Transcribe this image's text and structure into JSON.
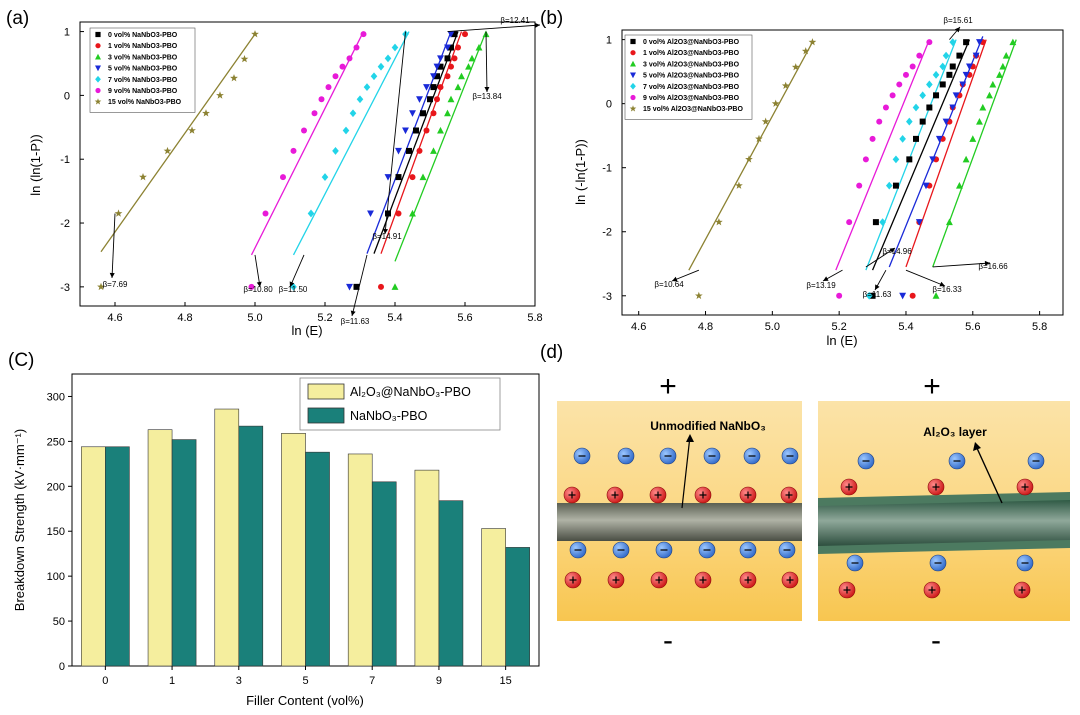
{
  "chart_data": [
    {
      "panel": "(a)",
      "type": "scatter",
      "xlabel": "ln (E)",
      "ylabel": "ln (ln(1-P))",
      "xlim": [
        4.5,
        5.8
      ],
      "ylim": [
        -3.3,
        1.15
      ],
      "xticks": [
        "4.6",
        "4.8",
        "5.0",
        "5.2",
        "5.4",
        "5.6",
        "5.8"
      ],
      "yticks": [
        "1",
        "0",
        "-1",
        "-2",
        "-3"
      ],
      "legend": [
        "0 vol% NaNbO3-PBO",
        "1 vol% NaNbO3-PBO",
        "3 vol% NaNbO3-PBO",
        "5 vol% NaNbO3-PBO",
        "7 vol% NaNbO3-PBO",
        "9 vol% NaNbO3-PBO",
        "15 vol% NaNbO3-PBO"
      ],
      "series": [
        {
          "name": "0 vol% NaNbO3-PBO",
          "color": "#000000",
          "marker": "square",
          "beta": "β=12.41",
          "x": [
            5.29,
            5.38,
            5.41,
            5.44,
            5.46,
            5.48,
            5.5,
            5.51,
            5.52,
            5.53,
            5.55,
            5.56,
            5.57
          ],
          "y": [
            -3.0,
            -1.85,
            -1.28,
            -0.87,
            -0.55,
            -0.28,
            -0.06,
            0.13,
            0.3,
            0.45,
            0.58,
            0.75,
            0.96
          ],
          "fit": [
            [
              5.34,
              -2.48
            ],
            [
              5.58,
              1.0
            ]
          ]
        },
        {
          "name": "1 vol% NaNbO3-PBO",
          "color": "#e8161b",
          "marker": "circle",
          "beta": "β=14.91",
          "x": [
            5.36,
            5.41,
            5.45,
            5.47,
            5.49,
            5.51,
            5.52,
            5.53,
            5.55,
            5.56,
            5.57,
            5.58,
            5.6
          ],
          "y": [
            -3.0,
            -1.85,
            -1.28,
            -0.87,
            -0.55,
            -0.28,
            -0.06,
            0.13,
            0.3,
            0.45,
            0.58,
            0.75,
            0.96
          ],
          "fit": [
            [
              5.36,
              -2.48
            ],
            [
              5.59,
              1.0
            ]
          ]
        },
        {
          "name": "3 vol% NaNbO3-PBO",
          "color": "#22cc22",
          "marker": "triangle-up",
          "beta": "β=13.84",
          "x": [
            5.4,
            5.45,
            5.48,
            5.51,
            5.53,
            5.55,
            5.56,
            5.58,
            5.59,
            5.61,
            5.62,
            5.64,
            5.66
          ],
          "y": [
            -3.0,
            -1.85,
            -1.28,
            -0.87,
            -0.55,
            -0.28,
            -0.06,
            0.13,
            0.3,
            0.45,
            0.58,
            0.75,
            0.96
          ],
          "fit": [
            [
              5.4,
              -2.6
            ],
            [
              5.66,
              1.0
            ]
          ]
        },
        {
          "name": "5 vol% NaNbO3-PBO",
          "color": "#1a2ad8",
          "marker": "triangle-down",
          "beta": "β=11.63",
          "x": [
            5.27,
            5.33,
            5.38,
            5.41,
            5.43,
            5.45,
            5.47,
            5.49,
            5.51,
            5.52,
            5.53,
            5.55,
            5.56
          ],
          "y": [
            -3.0,
            -1.85,
            -1.28,
            -0.87,
            -0.55,
            -0.28,
            -0.06,
            0.13,
            0.3,
            0.45,
            0.58,
            0.75,
            0.96
          ],
          "fit": [
            [
              5.32,
              -2.48
            ],
            [
              5.56,
              1.0
            ]
          ]
        },
        {
          "name": "7 vol% NaNbO3-PBO",
          "color": "#22d4e8",
          "marker": "diamond",
          "beta": "β=11.50",
          "x": [
            5.11,
            5.16,
            5.2,
            5.23,
            5.26,
            5.28,
            5.3,
            5.32,
            5.34,
            5.36,
            5.38,
            5.4,
            5.43
          ],
          "y": [
            -3.0,
            -1.85,
            -1.28,
            -0.87,
            -0.55,
            -0.28,
            -0.06,
            0.13,
            0.3,
            0.45,
            0.58,
            0.75,
            0.96
          ],
          "fit": [
            [
              5.11,
              -2.5
            ],
            [
              5.44,
              1.0
            ]
          ]
        },
        {
          "name": "9 vol% NaNbO3-PBO",
          "color": "#e81ad8",
          "marker": "circle",
          "beta": "β=10.80",
          "x": [
            4.99,
            5.03,
            5.08,
            5.11,
            5.14,
            5.17,
            5.19,
            5.21,
            5.23,
            5.25,
            5.27,
            5.29,
            5.31
          ],
          "y": [
            -3.0,
            -1.85,
            -1.28,
            -0.87,
            -0.55,
            -0.28,
            -0.06,
            0.13,
            0.3,
            0.45,
            0.58,
            0.75,
            0.96
          ],
          "fit": [
            [
              4.99,
              -2.5
            ],
            [
              5.31,
              1.0
            ]
          ]
        },
        {
          "name": "15 vol% NaNbO3-PBO",
          "color": "#8c8232",
          "marker": "star",
          "beta": "β=7.69",
          "x": [
            4.56,
            4.61,
            4.68,
            4.75,
            4.82,
            4.86,
            4.9,
            4.94,
            4.97,
            5.0
          ],
          "y": [
            -3.0,
            -1.85,
            -1.28,
            -0.87,
            -0.55,
            -0.28,
            0.0,
            0.27,
            0.57,
            0.96
          ],
          "fit": [
            [
              4.56,
              -2.45
            ],
            [
              5.0,
              0.96
            ]
          ]
        }
      ]
    },
    {
      "panel": "(b)",
      "type": "scatter",
      "xlabel": "ln (E)",
      "ylabel": "ln (-ln(1-P))",
      "xlim": [
        4.55,
        5.87
      ],
      "ylim": [
        -3.3,
        1.15
      ],
      "xticks": [
        "4.6",
        "4.8",
        "5.0",
        "5.2",
        "5.4",
        "5.6",
        "5.8"
      ],
      "yticks": [
        "1",
        "0",
        "-1",
        "-2",
        "-3"
      ],
      "legend": [
        "0 vol% Al2O3@NaNbO3-PBO",
        "1 vol% Al2O3@NaNbO3-PBO",
        "3 vol% Al2O3@NaNbO3-PBO",
        "5 vol% Al2O3@NaNbO3-PBO",
        "7 vol% Al2O3@NaNbO3-PBO",
        "9 vol% Al2O3@NaNbO3-PBO",
        "15 vol% Al2O3@NaNbO3-PBO"
      ],
      "series": [
        {
          "name": "0 vol% Al2O3@NaNbO3-PBO",
          "color": "#000000",
          "marker": "square",
          "beta": "β=15.61",
          "x": [
            5.3,
            5.31,
            5.37,
            5.41,
            5.43,
            5.45,
            5.47,
            5.49,
            5.51,
            5.53,
            5.54,
            5.56,
            5.58
          ],
          "y": [
            -3.0,
            -1.85,
            -1.28,
            -0.87,
            -0.55,
            -0.28,
            -0.06,
            0.13,
            0.3,
            0.45,
            0.58,
            0.75,
            0.96
          ],
          "fit": [
            [
              5.3,
              -2.6
            ],
            [
              5.59,
              1.0
            ]
          ]
        },
        {
          "name": "1 vol% Al2O3@NaNbO3-PBO",
          "color": "#e8161b",
          "marker": "circle",
          "beta": "β=16.33",
          "x": [
            5.42,
            5.44,
            5.47,
            5.49,
            5.51,
            5.53,
            5.54,
            5.56,
            5.57,
            5.59,
            5.6,
            5.61,
            5.63
          ],
          "y": [
            -3.0,
            -1.85,
            -1.28,
            -0.87,
            -0.55,
            -0.28,
            -0.06,
            0.13,
            0.3,
            0.45,
            0.58,
            0.75,
            0.96
          ],
          "fit": [
            [
              5.4,
              -2.55
            ],
            [
              5.64,
              1.0
            ]
          ]
        },
        {
          "name": "3 vol% Al2O3@NaNbO3-PBO",
          "color": "#22cc22",
          "marker": "triangle-up",
          "beta": "β=16.66",
          "x": [
            5.49,
            5.53,
            5.56,
            5.58,
            5.6,
            5.62,
            5.63,
            5.65,
            5.66,
            5.68,
            5.69,
            5.7,
            5.72
          ],
          "y": [
            -3.0,
            -1.85,
            -1.28,
            -0.87,
            -0.55,
            -0.28,
            -0.06,
            0.13,
            0.3,
            0.45,
            0.58,
            0.75,
            0.96
          ],
          "fit": [
            [
              5.48,
              -2.55
            ],
            [
              5.73,
              1.0
            ]
          ]
        },
        {
          "name": "5 vol% Al2O3@NaNbO3-PBO",
          "color": "#1a2ad8",
          "marker": "triangle-down",
          "beta": "β=14.96",
          "x": [
            5.39,
            5.44,
            5.46,
            5.48,
            5.5,
            5.52,
            5.54,
            5.55,
            5.57,
            5.58,
            5.59,
            5.61,
            5.62
          ],
          "y": [
            -3.0,
            -1.85,
            -1.28,
            -0.87,
            -0.55,
            -0.28,
            -0.06,
            0.13,
            0.3,
            0.45,
            0.58,
            0.75,
            0.96
          ],
          "fit": [
            [
              5.35,
              -2.55
            ],
            [
              5.63,
              1.05
            ]
          ]
        },
        {
          "name": "7 vol% Al2O3@NaNbO3-PBO",
          "color": "#22d4e8",
          "marker": "diamond",
          "beta": "β=11.63",
          "x": [
            5.29,
            5.33,
            5.35,
            5.37,
            5.39,
            5.41,
            5.43,
            5.45,
            5.47,
            5.49,
            5.51,
            5.52,
            5.54
          ],
          "y": [
            -3.0,
            -1.85,
            -1.28,
            -0.87,
            -0.55,
            -0.28,
            -0.06,
            0.13,
            0.3,
            0.45,
            0.58,
            0.75,
            0.96
          ],
          "fit": [
            [
              5.28,
              -2.6
            ],
            [
              5.55,
              1.0
            ]
          ]
        },
        {
          "name": "9 vol% Al2O3@NaNbO3-PBO",
          "color": "#e81ad8",
          "marker": "circle",
          "beta": "β=13.19",
          "x": [
            5.2,
            5.23,
            5.26,
            5.28,
            5.3,
            5.32,
            5.34,
            5.36,
            5.38,
            5.4,
            5.42,
            5.44,
            5.47
          ],
          "y": [
            -3.0,
            -1.85,
            -1.28,
            -0.87,
            -0.55,
            -0.28,
            -0.06,
            0.13,
            0.3,
            0.45,
            0.58,
            0.75,
            0.96
          ],
          "fit": [
            [
              5.19,
              -2.6
            ],
            [
              5.47,
              1.0
            ]
          ]
        },
        {
          "name": "15 vol% Al2O3@NaNbO3-PBO",
          "color": "#8c8232",
          "marker": "star",
          "beta": "β=10.64",
          "x": [
            4.78,
            4.84,
            4.9,
            4.93,
            4.96,
            4.98,
            5.01,
            5.04,
            5.07,
            5.1,
            5.12
          ],
          "y": [
            -3.0,
            -1.85,
            -1.28,
            -0.87,
            -0.55,
            -0.28,
            0.0,
            0.28,
            0.57,
            0.82,
            0.96
          ],
          "fit": [
            [
              4.75,
              -2.6
            ],
            [
              5.12,
              0.96
            ]
          ]
        }
      ]
    },
    {
      "panel": "(C)",
      "type": "bar",
      "xlabel": "Filler Content (vol%)",
      "ylabel": "Breakdown Strength (kV·mm⁻¹)",
      "ylim": [
        0,
        325
      ],
      "yticks": [
        "0",
        "50",
        "100",
        "150",
        "200",
        "250",
        "300"
      ],
      "categories": [
        "0",
        "1",
        "3",
        "5",
        "7",
        "9",
        "15"
      ],
      "series": [
        {
          "name": "Al₂O₃@NaNbO₃-PBO",
          "color": "#f5ee9e",
          "values": [
            244,
            263,
            286,
            259,
            236,
            218,
            153
          ]
        },
        {
          "name": "NaNbO₃-PBO",
          "color": "#1a807a",
          "values": [
            244,
            252,
            267,
            238,
            205,
            184,
            132
          ]
        }
      ]
    }
  ],
  "panel_d": {
    "label": "(d)",
    "left": {
      "plus": "+",
      "minus": "-",
      "annotation": "Unmodified NaNbO₃"
    },
    "right": {
      "plus": "+",
      "minus": "-",
      "annotation": "Al₂O₃ layer"
    }
  }
}
